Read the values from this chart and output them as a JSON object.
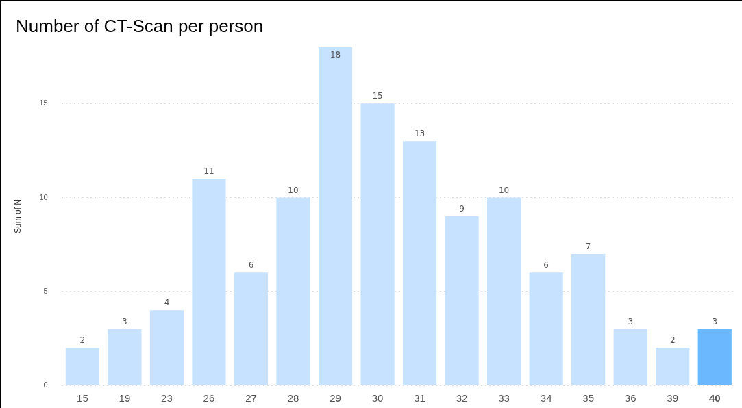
{
  "chart_data": {
    "type": "bar",
    "title": "Number of CT-Scan per person",
    "ylabel": "Sum of N",
    "categories": [
      "15",
      "19",
      "23",
      "26",
      "27",
      "28",
      "29",
      "30",
      "31",
      "32",
      "33",
      "34",
      "35",
      "36",
      "39",
      "40"
    ],
    "values": [
      2,
      3,
      4,
      11,
      6,
      10,
      18,
      15,
      13,
      9,
      10,
      6,
      7,
      3,
      2,
      3
    ],
    "colors": [
      "#c6e2ff",
      "#c6e2ff",
      "#c6e2ff",
      "#c6e2ff",
      "#c6e2ff",
      "#c6e2ff",
      "#c6e2ff",
      "#c6e2ff",
      "#c6e2ff",
      "#c6e2ff",
      "#c6e2ff",
      "#c6e2ff",
      "#c6e2ff",
      "#c6e2ff",
      "#c6e2ff",
      "#6cb8ff"
    ],
    "ylim": [
      0,
      18
    ],
    "yticks": [
      0,
      5,
      10,
      15
    ],
    "grid": "y",
    "data_labels": true,
    "legend": false
  }
}
